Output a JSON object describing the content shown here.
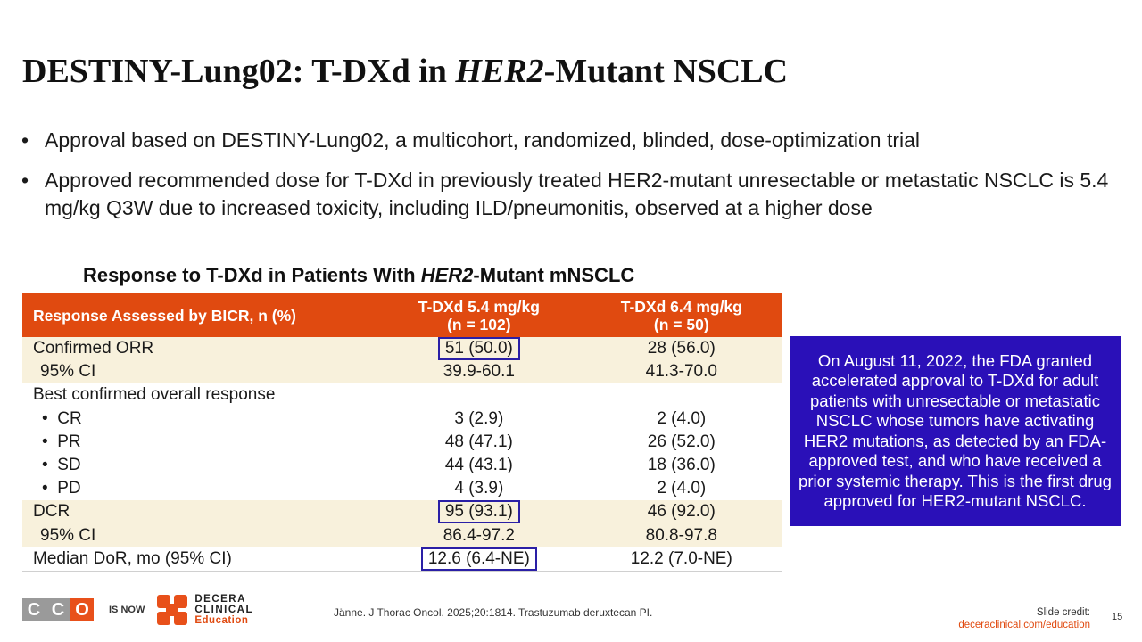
{
  "title": {
    "part1": "DESTINY-Lung02: T-DXd in ",
    "italic": "HER2",
    "part2": "-Mutant NSCLC"
  },
  "bullets": [
    "Approval based on DESTINY-Lung02, a multicohort, randomized, blinded, dose-optimization trial",
    "Approved recommended dose for T-DXd in previously treated HER2-mutant unresectable or metastatic NSCLC is 5.4 mg/kg Q3W due to increased toxicity, including ILD/pneumonitis, observed at a higher dose"
  ],
  "bullet_symbol": "•",
  "table_title": {
    "part1": "Response to T-DXd in Patients With ",
    "italic": "HER2",
    "part2": "-Mutant mNSCLC"
  },
  "table": {
    "headers": {
      "col1": "Response Assessed by BICR, n (%)",
      "col2_line1": "T-DXd 5.4 mg/kg",
      "col2_line2": "(n = 102)",
      "col3_line1": "T-DXd 6.4 mg/kg",
      "col3_line2": "(n = 50)"
    },
    "rows": [
      {
        "label": "Confirmed ORR",
        "v1": "51 (50.0)",
        "v2": "28 (56.0)"
      },
      {
        "label": "95% CI",
        "v1": "39.9-60.1",
        "v2": "41.3-70.0"
      },
      {
        "label": "Best confirmed overall response",
        "v1": "",
        "v2": ""
      },
      {
        "label": "CR",
        "v1": "3 (2.9)",
        "v2": "2 (4.0)"
      },
      {
        "label": "PR",
        "v1": "48 (47.1)",
        "v2": "26 (52.0)"
      },
      {
        "label": "SD",
        "v1": "44 (43.1)",
        "v2": "18 (36.0)"
      },
      {
        "label": "PD",
        "v1": "4 (3.9)",
        "v2": "2 (4.0)"
      },
      {
        "label": "DCR",
        "v1": "95 (93.1)",
        "v2": "46 (92.0)"
      },
      {
        "label": "95% CI",
        "v1": "86.4-97.2",
        "v2": "80.8-97.8"
      },
      {
        "label": "Median DoR, mo (95% CI)",
        "v1": "12.6 (6.4-NE)",
        "v2": "12.2 (7.0-NE)"
      }
    ]
  },
  "callout": "On August 11, 2022, the FDA granted accelerated approval to T-DXd for adult patients with unresectable or metastatic NSCLC whose tumors have activating HER2 mutations, as detected by an FDA-approved test, and who have received a prior systemic therapy. This is the first drug approved for HER2-mutant NSCLC.",
  "footer": {
    "cco_letters": [
      "C",
      "C",
      "O"
    ],
    "is_now": "IS NOW",
    "decera_line1": "DECERA",
    "decera_line2": "CLINICAL",
    "decera_line3": "Education",
    "reference": "Jänne. J Thorac Oncol. 2025;20:1814. Trastuzumab deruxtecan PI.",
    "credit_label": "Slide credit:",
    "credit_link": "deceraclinical.com/education",
    "page_number": "15"
  },
  "colors": {
    "header_orange": "#e04a10",
    "row_shade": "#f8f1dc",
    "callout_blue": "#2a10b8",
    "highlight_border": "#2a1fa6",
    "cco_gray": "#9a9a9a",
    "cco_orange": "#e8501a"
  }
}
